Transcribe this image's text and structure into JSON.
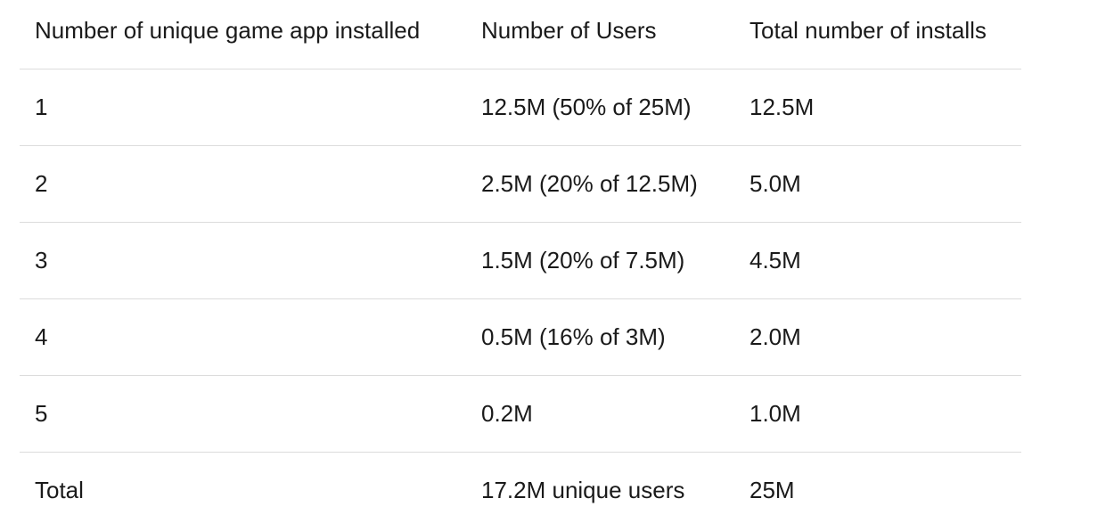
{
  "table": {
    "headers": [
      "Number of unique game app installed",
      "Number of Users",
      "Total number of installs"
    ],
    "rows": [
      [
        "1",
        "12.5M (50% of 25M)",
        "12.5M"
      ],
      [
        "2",
        "2.5M (20% of 12.5M)",
        "5.0M"
      ],
      [
        "3",
        "1.5M (20% of 7.5M)",
        "4.5M"
      ],
      [
        "4",
        "0.5M (16% of 3M)",
        "2.0M"
      ],
      [
        "5",
        "0.2M",
        "1.0M"
      ],
      [
        "Total",
        "17.2M unique users",
        "25M"
      ]
    ]
  }
}
